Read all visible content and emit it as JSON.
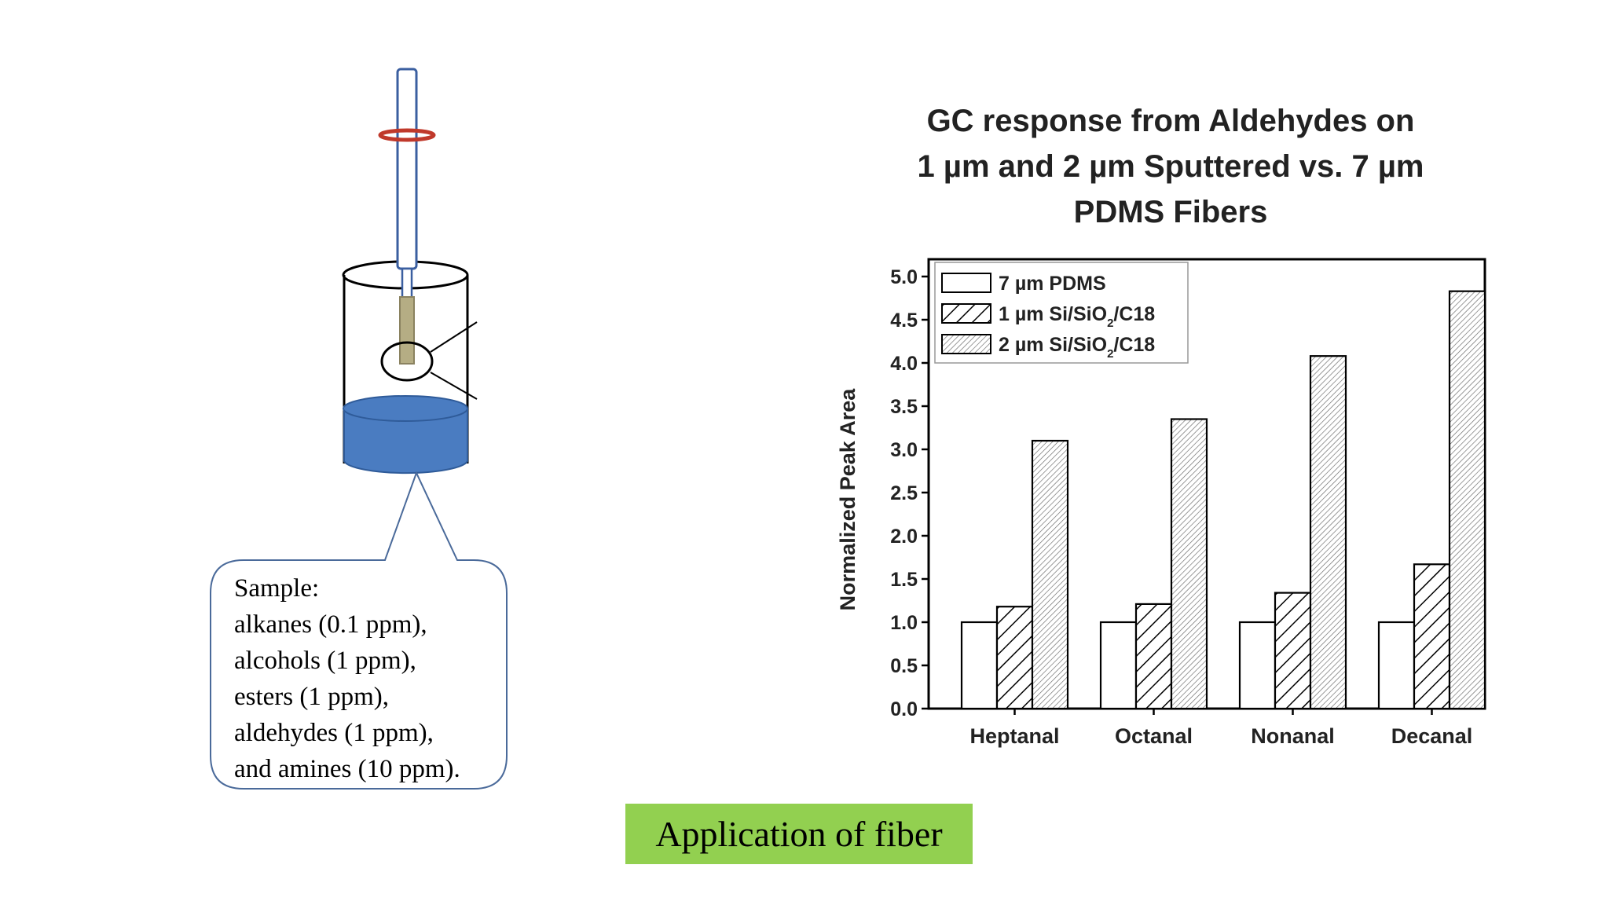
{
  "slide": {
    "caption": "Application of fiber"
  },
  "diagram": {
    "callout_lines": [
      "Sample:",
      "alkanes (0.1 ppm),",
      "alcohols (1 ppm),",
      "esters (1 ppm),",
      "aldehydes (1 ppm),",
      "and amines (10 ppm)."
    ]
  },
  "chart_title_lines": [
    "GC response from Aldehydes on",
    "1 µm and 2 µm Sputtered vs. 7 µm",
    "PDMS Fibers"
  ],
  "colors": {
    "caption_bg": "#92d050",
    "water": "#4a7cc1",
    "fiber_holder": "#3b5fa0",
    "ring": "#c0392b",
    "fiber_coating": "#b5ad84"
  },
  "chart_data": {
    "type": "bar",
    "title": "GC response from Aldehydes on 1 µm and 2 µm Sputtered vs. 7 µm PDMS Fibers",
    "xlabel": "",
    "ylabel": "Normalized Peak Area",
    "ylim": [
      0,
      5.0
    ],
    "yticks": [
      "0.0",
      "0.5",
      "1.0",
      "1.5",
      "2.0",
      "2.5",
      "3.0",
      "3.5",
      "4.0",
      "4.5",
      "5.0"
    ],
    "categories": [
      "Heptanal",
      "Octanal",
      "Nonanal",
      "Decanal"
    ],
    "series": [
      {
        "name": "7 µm PDMS",
        "legend_main": "7 µm PDMS",
        "legend_sub": "",
        "legend_tail": "",
        "values": [
          1.0,
          1.0,
          1.0,
          1.0
        ],
        "pattern": "none"
      },
      {
        "name": "1 µm Si/SiO2/C18",
        "legend_main": "1 µm Si/SiO",
        "legend_sub": "2",
        "legend_tail": "/C18",
        "values": [
          1.18,
          1.21,
          1.34,
          1.67
        ],
        "pattern": "coarse-diagonal"
      },
      {
        "name": "2 µm Si/SiO2/C18",
        "legend_main": "2 µm Si/SiO",
        "legend_sub": "2",
        "legend_tail": "/C18",
        "values": [
          3.1,
          3.35,
          4.08,
          4.83
        ],
        "pattern": "fine-diagonal"
      }
    ],
    "legend_position": "top-left",
    "grid": false
  }
}
